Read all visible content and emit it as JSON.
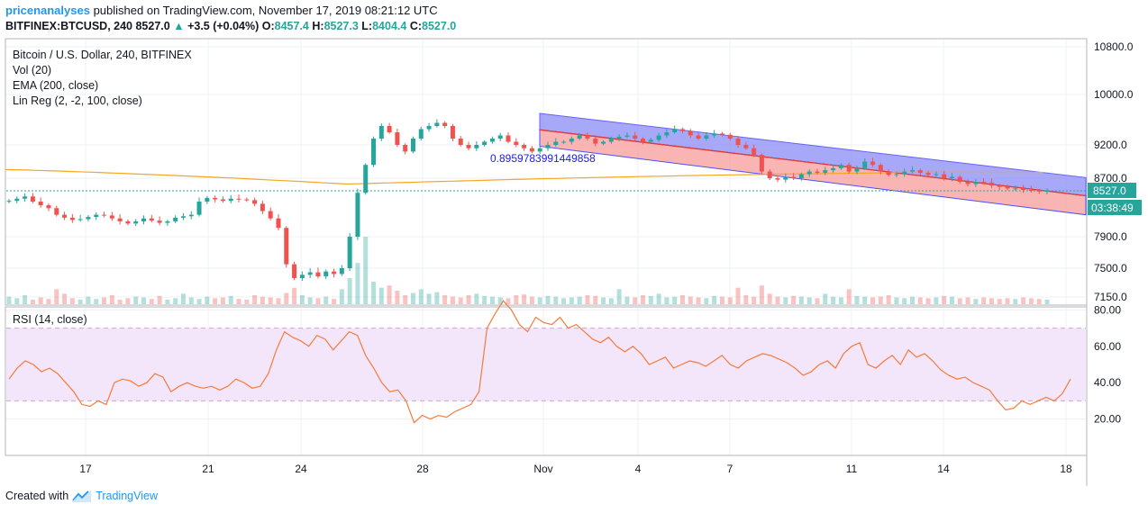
{
  "header": {
    "author": "pricenanalyses",
    "published_text": "published on TradingView.com, November 17, 2019 08:21:12 UTC",
    "symbol": "BITFINEX:BTCUSD, 240",
    "price": "8527.0",
    "change_arrow": "▲",
    "change": "+3.5 (+0.04%)",
    "o_label": "O:",
    "o": "8457.4",
    "h_label": "H:",
    "h": "8527.3",
    "l_label": "L:",
    "l": "8404.4",
    "c_label": "C:",
    "c": "8527.0"
  },
  "legend": {
    "title": "Bitcoin / U.S. Dollar, 240, BITFINEX",
    "vol": "Vol (20)",
    "ema": "EMA (200, close)",
    "linreg": "Lin Reg (2, -2, 100, close)",
    "rsi": "RSI (14, close)"
  },
  "annotation": {
    "correlation": "0.8959783991449858"
  },
  "footer": {
    "created_with": "Created with",
    "brand": "TradingView"
  },
  "colors": {
    "up": "#26a69a",
    "down": "#ef5350",
    "ema": "#f5a623",
    "rsi": "#f57c3a",
    "rsi_band": "#f3e5fa",
    "channel_upper": "#8c8cf8",
    "channel_lower": "#f9a7a7",
    "linreg_mid": "#e53935",
    "price_tag": "#26a69a"
  },
  "chart_data": [
    {
      "type": "candlestick",
      "title": "Bitcoin / U.S. Dollar, 240, BITFINEX",
      "x_ticks": [
        "17",
        "21",
        "24",
        "28",
        "Nov",
        "4",
        "7",
        "11",
        "14",
        "18"
      ],
      "y_ticks": [
        10800.0,
        10000.0,
        9200.0,
        8700.0,
        7900.0,
        7500.0,
        7150.0
      ],
      "y_tick_labels": [
        "10800.0",
        "10000.0",
        "9200.0",
        "8700.0",
        "7900.0",
        "7500.0",
        "7150.0"
      ],
      "last_price": "8527.0",
      "countdown": "03:38:49",
      "close_series": [
        8390,
        8420,
        8450,
        8380,
        8330,
        8290,
        8200,
        8160,
        8130,
        8140,
        8170,
        8200,
        8190,
        8150,
        8110,
        8080,
        8110,
        8150,
        8120,
        8090,
        8110,
        8160,
        8180,
        8200,
        8380,
        8430,
        8410,
        8390,
        8420,
        8410,
        8400,
        8350,
        8250,
        8150,
        8020,
        7550,
        7380,
        7420,
        7450,
        7400,
        7460,
        7430,
        7500,
        7900,
        8500,
        8900,
        9300,
        9500,
        9400,
        9200,
        9100,
        9300,
        9450,
        9500,
        9550,
        9500,
        9300,
        9200,
        9150,
        9200,
        9250,
        9300,
        9350,
        9250,
        9200,
        9150,
        9100,
        9150,
        9200,
        9250,
        9250,
        9300,
        9350,
        9300,
        9220,
        9250,
        9300,
        9330,
        9350,
        9300,
        9250,
        9280,
        9350,
        9400,
        9450,
        9420,
        9350,
        9300,
        9350,
        9380,
        9360,
        9300,
        9200,
        9150,
        9050,
        8800,
        8700,
        8680,
        8720,
        8700,
        8760,
        8800,
        8780,
        8820,
        8850,
        8900,
        8800,
        8850,
        8950,
        8900,
        8800,
        8750,
        8760,
        8800,
        8820,
        8780,
        8750,
        8760,
        8700,
        8720,
        8650,
        8620,
        8650,
        8640,
        8600,
        8580,
        8560,
        8560,
        8540,
        8530,
        8520,
        8527
      ],
      "ema": {
        "name": "EMA (200, close)",
        "start": 8830,
        "dip": 8620,
        "end": 8790
      },
      "linreg_channel": {
        "name": "Lin Reg (2, -2, 100, close)",
        "start": {
          "upper": 9700,
          "mid": 9440,
          "lower": 9180
        },
        "end": {
          "upper": 8710,
          "mid": 8460,
          "lower": 8200
        }
      },
      "volume_series": [
        10,
        8,
        12,
        6,
        9,
        7,
        20,
        14,
        8,
        6,
        10,
        7,
        9,
        12,
        6,
        8,
        10,
        9,
        7,
        11,
        6,
        8,
        14,
        9,
        7,
        10,
        8,
        9,
        11,
        7,
        6,
        12,
        10,
        9,
        8,
        15,
        22,
        12,
        9,
        8,
        10,
        7,
        20,
        35,
        55,
        90,
        30,
        22,
        25,
        18,
        12,
        15,
        20,
        14,
        16,
        12,
        10,
        9,
        12,
        14,
        11,
        10,
        9,
        8,
        12,
        13,
        10,
        9,
        11,
        10,
        8,
        9,
        10,
        12,
        11,
        9,
        8,
        20,
        10,
        9,
        12,
        11,
        14,
        9,
        10,
        12,
        10,
        9,
        8,
        11,
        10,
        9,
        22,
        12,
        10,
        25,
        14,
        10,
        9,
        11,
        10,
        9,
        8,
        14,
        10,
        9,
        20,
        11,
        10,
        9,
        10,
        12,
        9,
        8,
        10,
        9,
        8,
        9,
        11,
        10,
        8,
        9,
        7,
        9,
        8,
        7,
        8,
        7,
        9,
        8,
        7,
        6
      ]
    },
    {
      "type": "line",
      "title": "RSI (14, close)",
      "y_ticks": [
        80.0,
        60.0,
        40.0,
        20.0
      ],
      "y_tick_labels": [
        "80.00",
        "60.00",
        "40.00",
        "20.00"
      ],
      "band": [
        70,
        30
      ],
      "series": [
        {
          "name": "RSI (14, close)",
          "values": [
            42,
            48,
            52,
            50,
            46,
            48,
            45,
            40,
            35,
            28,
            27,
            30,
            28,
            40,
            42,
            41,
            38,
            40,
            45,
            43,
            35,
            38,
            40,
            38,
            37,
            38,
            36,
            38,
            42,
            40,
            37,
            38,
            45,
            58,
            68,
            65,
            63,
            60,
            66,
            64,
            58,
            63,
            68,
            66,
            55,
            48,
            40,
            35,
            36,
            30,
            18,
            22,
            20,
            22,
            21,
            24,
            26,
            28,
            35,
            70,
            78,
            85,
            80,
            72,
            68,
            76,
            73,
            72,
            76,
            70,
            72,
            68,
            64,
            62,
            65,
            60,
            57,
            60,
            56,
            50,
            52,
            54,
            48,
            50,
            52,
            51,
            49,
            52,
            55,
            50,
            48,
            52,
            54,
            56,
            55,
            53,
            51,
            48,
            44,
            46,
            50,
            52,
            48,
            56,
            60,
            62,
            50,
            48,
            52,
            55,
            50,
            58,
            54,
            56,
            52,
            47,
            44,
            42,
            43,
            40,
            38,
            36,
            30,
            25,
            26,
            30,
            28,
            30,
            32,
            30,
            34,
            42
          ]
        }
      ]
    }
  ]
}
